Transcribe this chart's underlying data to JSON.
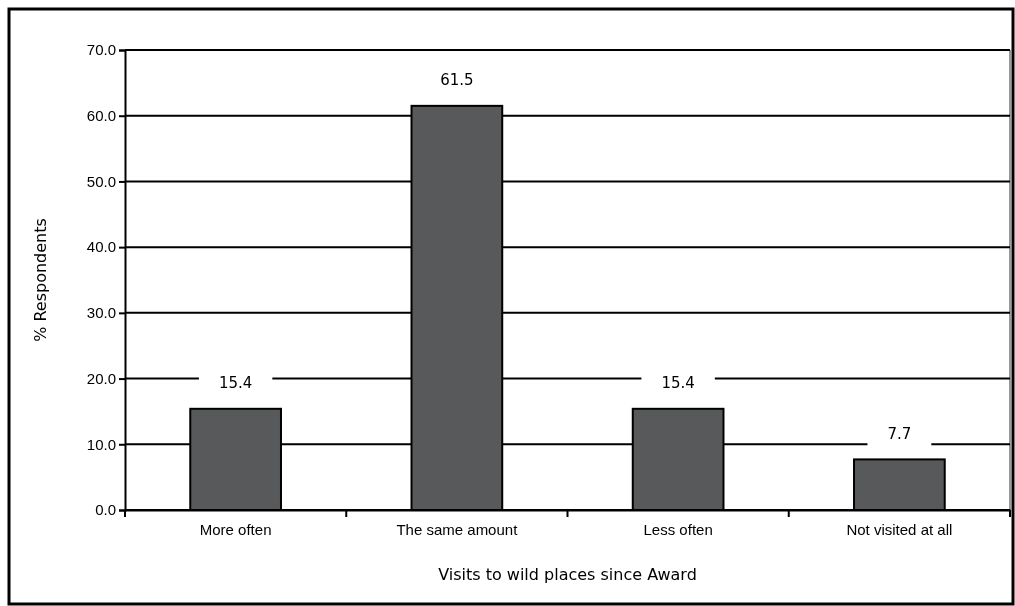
{
  "chart_data": {
    "type": "bar",
    "xlabel": "Visits to wild places since Award",
    "ylabel": "% Respondents",
    "categories": [
      "More often",
      "The same amount",
      "Less often",
      "Not visited at all"
    ],
    "values": [
      15.4,
      61.5,
      15.4,
      7.7
    ],
    "color": "#58595b",
    "ylim": [
      0,
      70
    ],
    "yticks": [
      {
        "value": 0,
        "label": "0.0"
      },
      {
        "value": 10,
        "label": "10.0"
      },
      {
        "value": 20,
        "label": "20.0"
      },
      {
        "value": 30,
        "label": "30.0"
      },
      {
        "value": 40,
        "label": "40.0"
      },
      {
        "value": 50,
        "label": "50.0"
      },
      {
        "value": 60,
        "label": "60.0"
      },
      {
        "value": 70,
        "label": "70.0"
      }
    ],
    "grid": "y",
    "data_labels": true
  }
}
